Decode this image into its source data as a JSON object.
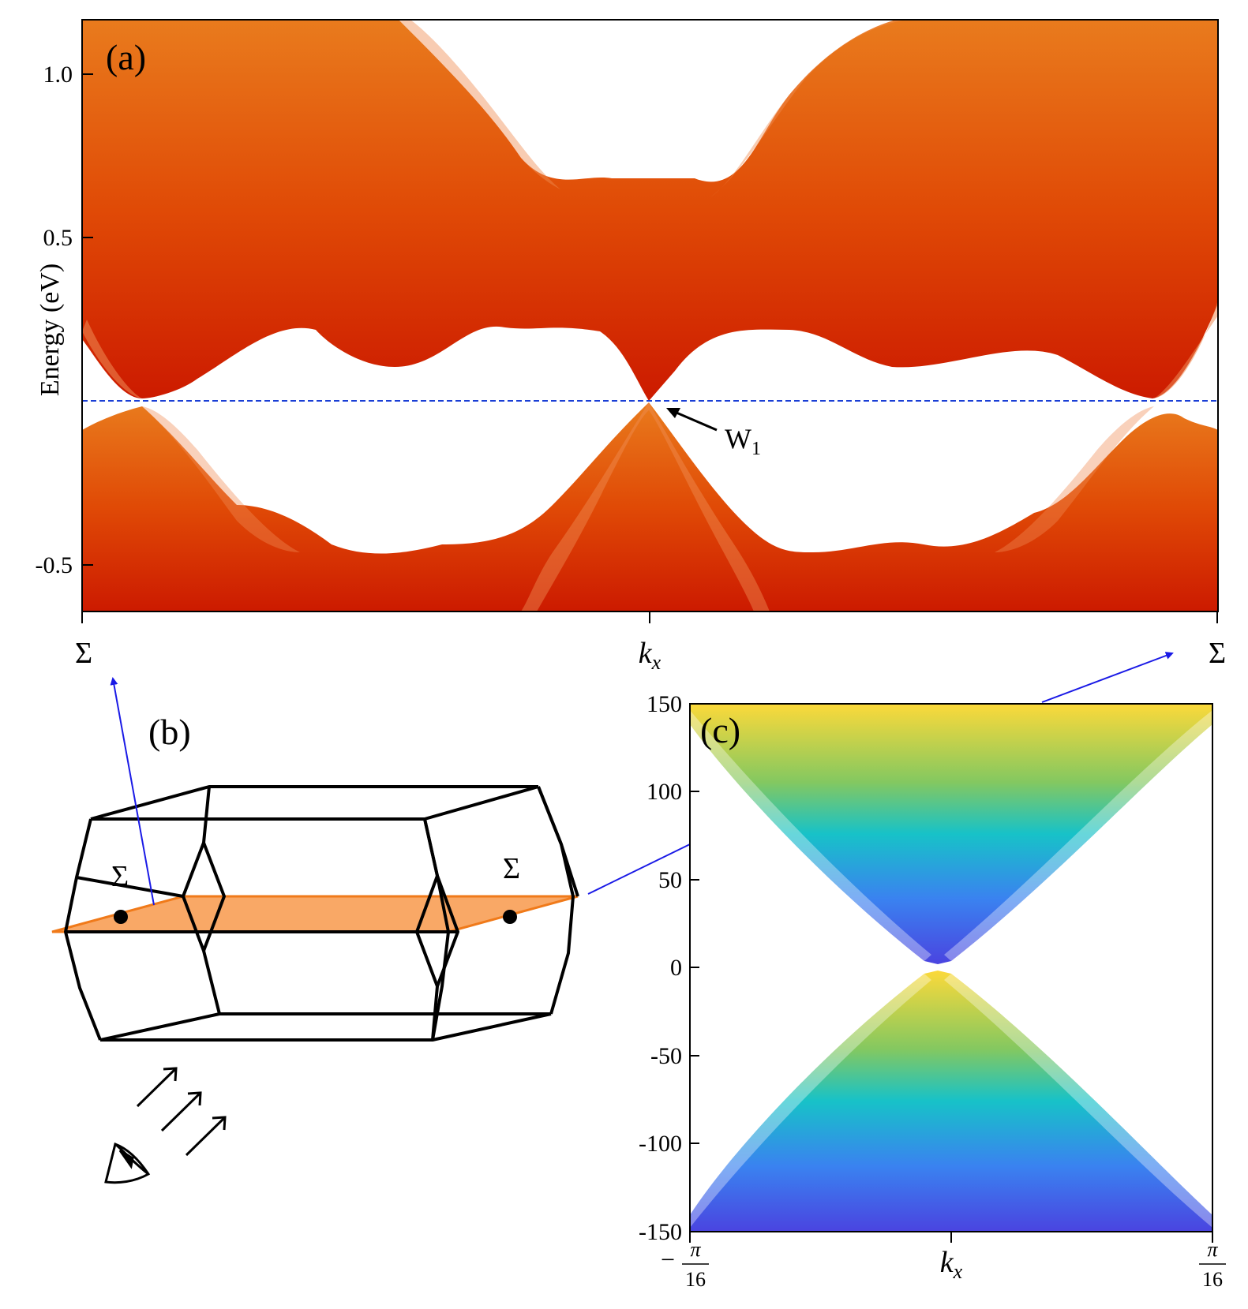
{
  "panels": {
    "a": {
      "tag": "(a)",
      "ylabel": "Energy (eV)",
      "yticks": [
        "1.0",
        "0.5",
        "-0.5"
      ],
      "ytick_values": [
        1.0,
        0.5,
        -0.5
      ],
      "ylim": [
        -0.64,
        1.16
      ],
      "xticks": [
        "Σ",
        "k",
        "x",
        "Σ"
      ],
      "annotation": {
        "main": "W",
        "sub": "1",
        "energy": 0.0
      },
      "fermi_level": 0.0,
      "colors": {
        "top": "#e97b1d",
        "mid": "#e04a06",
        "bottom": "#cc1a00",
        "fermi": "#1a3fd6"
      }
    },
    "b": {
      "tag": "(b)",
      "points": [
        "Σ",
        "Σ"
      ],
      "colors": {
        "plane": "#f9a866",
        "plane_edge": "#f07a1a",
        "link": "#1a1ae6"
      }
    },
    "c": {
      "tag": "(c)",
      "yticks": [
        "150",
        "100",
        "50",
        "0",
        "-50",
        "-100",
        "-150"
      ],
      "ytick_values": [
        150,
        100,
        50,
        0,
        -50,
        -100,
        -150
      ],
      "ylim": [
        -150,
        150
      ],
      "xticks_main": [
        "−",
        "π",
        "16",
        "k",
        "x",
        "π",
        "16"
      ],
      "colors": {
        "top": "#fcd93a",
        "upper": "#84c860",
        "middle": "#17c2c8",
        "lower": "#3a82f0",
        "bottom": "#4a44e0"
      }
    }
  },
  "chart_data": [
    {
      "type": "area",
      "title": "",
      "xlabel": "",
      "ylabel": "Energy (eV)",
      "x_points": [
        "Σ",
        "kx",
        "Σ"
      ],
      "ylim": [
        -0.64,
        1.16
      ],
      "series": [],
      "annotations": [
        {
          "text": "W1",
          "x": "kx",
          "y": 0.0
        }
      ],
      "fermi_level": 0.0
    },
    {
      "type": "area",
      "title": "",
      "xlabel": "kx",
      "ylabel": "",
      "xlim": [
        "−π/16",
        "π/16"
      ],
      "ylim": [
        -150,
        150
      ],
      "series": []
    }
  ]
}
